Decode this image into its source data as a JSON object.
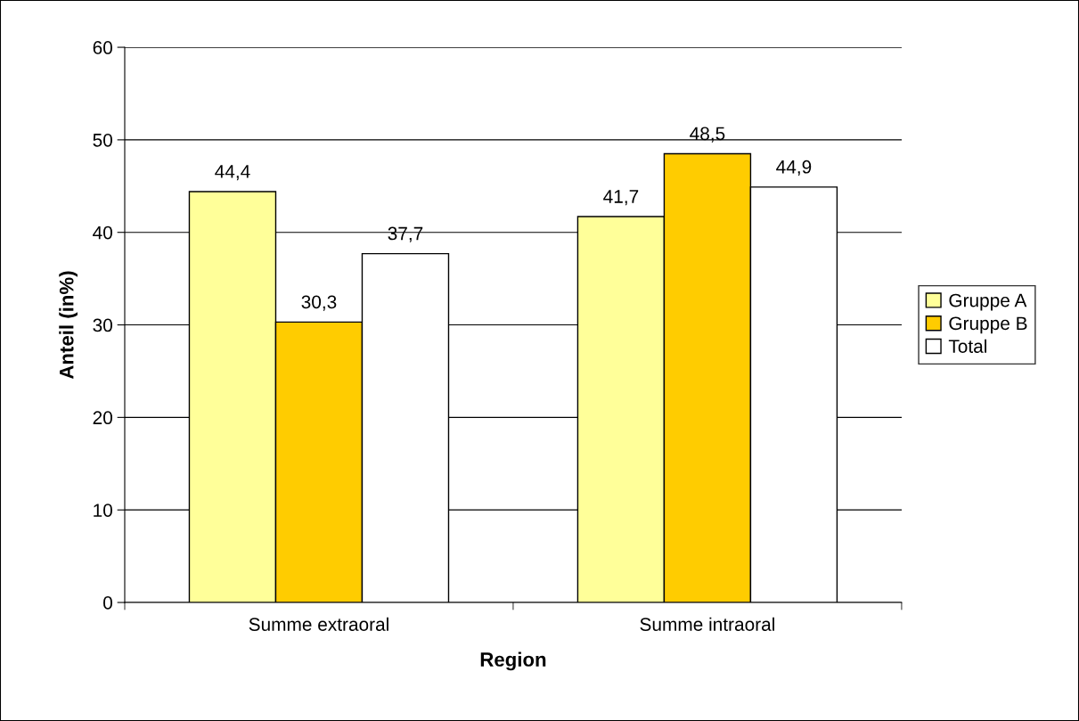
{
  "chart_data": {
    "type": "bar",
    "xlabel": "Region",
    "ylabel": "Anteil (in%)",
    "categories": [
      "Summe extraoral",
      "Summe intraoral"
    ],
    "series": [
      {
        "name": "Gruppe A",
        "color": "#ffff99",
        "values": [
          44.4,
          41.7
        ],
        "value_labels": [
          "44,4",
          "41,7"
        ]
      },
      {
        "name": "Gruppe B",
        "color": "#ffcc00",
        "values": [
          30.3,
          48.5
        ],
        "value_labels": [
          "30,3",
          "48,5"
        ]
      },
      {
        "name": "Total",
        "color": "#ffffff",
        "values": [
          37.7,
          44.9
        ],
        "value_labels": [
          "37,7",
          "44,9"
        ]
      }
    ],
    "ylim": [
      0,
      60
    ],
    "yticks": [
      0,
      10,
      20,
      30,
      40,
      50,
      60
    ],
    "grid": "y",
    "legend": "right"
  }
}
